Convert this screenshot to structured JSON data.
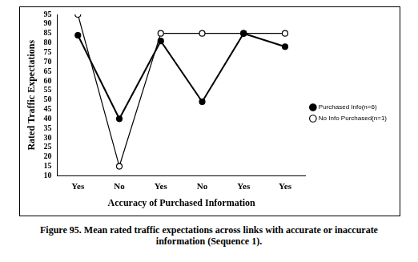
{
  "chart_data": {
    "type": "line",
    "title": [
      "Figure 95.  Mean rated traffic expectations across links with accurate or inaccurate",
      "information (Sequence 1)."
    ],
    "x_label": "Accuracy of Purchased Information",
    "y_label": "Rated Traffic Expectations",
    "categories": [
      "Yes",
      "No",
      "Yes",
      "No",
      "Yes",
      "Yes"
    ],
    "series": [
      {
        "name": "Purchased Info(n=6)",
        "color": "#000000",
        "marker": "filled_circle",
        "values": [
          84,
          40,
          81,
          49,
          85,
          78
        ]
      },
      {
        "name": "No Info Purchased(n=1)",
        "color": "#000000",
        "marker": "open_circle",
        "values": [
          95,
          15,
          85,
          85,
          85,
          85
        ]
      }
    ],
    "ylim": [
      10,
      95
    ],
    "yticks": [
      10,
      15,
      20,
      25,
      30,
      35,
      40,
      45,
      50,
      55,
      60,
      65,
      70,
      75,
      80,
      85,
      90,
      95
    ],
    "grid": false,
    "legend": "right"
  }
}
